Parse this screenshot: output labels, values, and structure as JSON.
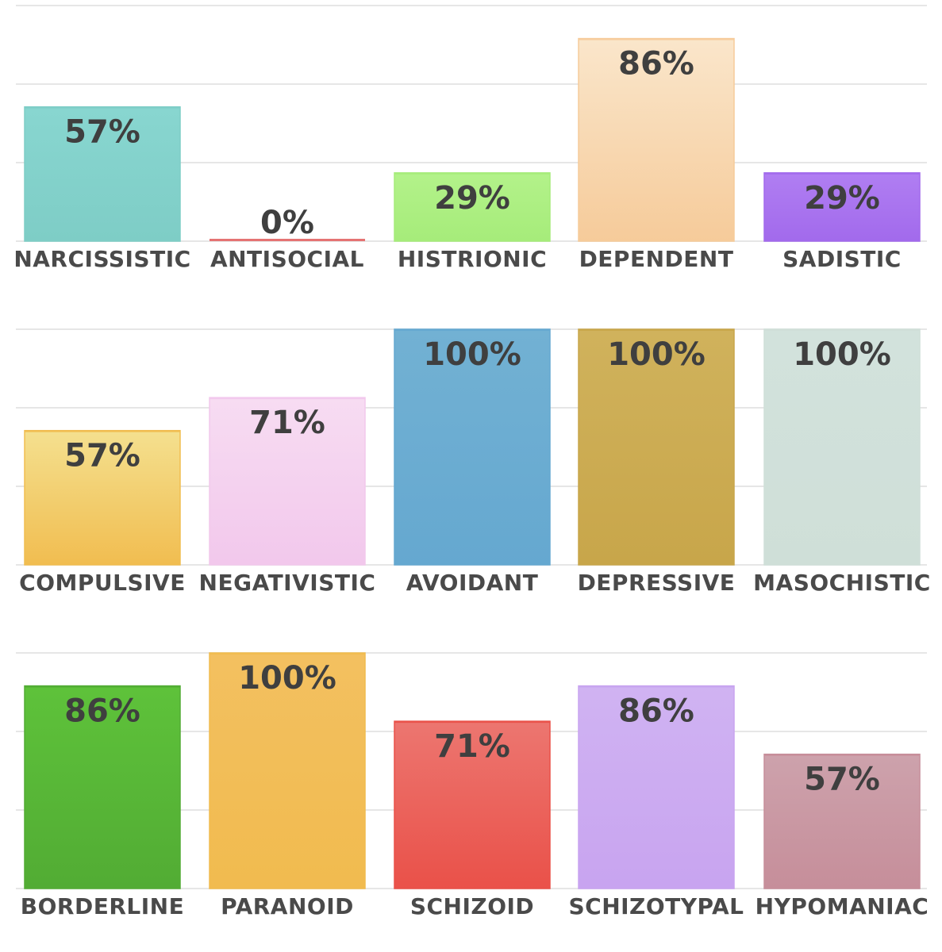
{
  "chart_data": [
    {
      "type": "bar",
      "categories": [
        "NARCISSISTIC",
        "ANTISOCIAL",
        "HISTRIONIC",
        "DEPENDENT",
        "SADISTIC"
      ],
      "values": [
        57,
        0,
        29,
        86,
        29
      ],
      "value_labels": [
        "57%",
        "0%",
        "29%",
        "86%",
        "29%"
      ],
      "colors": [
        [
          "#88d6d0",
          "#7ecdc6"
        ],
        [
          "#e57373",
          "#e57373"
        ],
        [
          "#b3f28a",
          "#a6ec7a"
        ],
        [
          "#fae6cb",
          "#f6cb9a"
        ],
        [
          "#b07ef2",
          "#a26aec"
        ]
      ],
      "ylim": [
        0,
        100
      ],
      "grid": true
    },
    {
      "type": "bar",
      "categories": [
        "COMPULSIVE",
        "NEGATIVISTIC",
        "AVOIDANT",
        "DEPRESSIVE",
        "MASOCHISTIC"
      ],
      "values": [
        57,
        71,
        100,
        100,
        100
      ],
      "value_labels": [
        "57%",
        "71%",
        "100%",
        "100%",
        "100%"
      ],
      "colors": [
        [
          "#f4e08f",
          "#f1bd50"
        ],
        [
          "#f7dcf2",
          "#f2c8ec"
        ],
        [
          "#72b1d3",
          "#65a8d0"
        ],
        [
          "#d0b25c",
          "#c8a64a"
        ],
        [
          "#d2e2dc",
          "#cfdfd8"
        ]
      ],
      "ylim": [
        0,
        100
      ],
      "grid": true
    },
    {
      "type": "bar",
      "categories": [
        "BORDERLINE",
        "PARANOID",
        "SCHIZOID",
        "SCHIZOTYPAL",
        "HYPOMANIAC"
      ],
      "values": [
        86,
        100,
        71,
        86,
        57
      ],
      "value_labels": [
        "86%",
        "100%",
        "71%",
        "86%",
        "57%"
      ],
      "colors": [
        [
          "#5ec23a",
          "#52ac34"
        ],
        [
          "#f3c060",
          "#f1bb4f"
        ],
        [
          "#ec7670",
          "#ea5149"
        ],
        [
          "#d0b3f2",
          "#c8a4f0"
        ],
        [
          "#cda2ac",
          "#c68e9a"
        ]
      ],
      "ylim": [
        0,
        100
      ],
      "grid": true
    }
  ]
}
